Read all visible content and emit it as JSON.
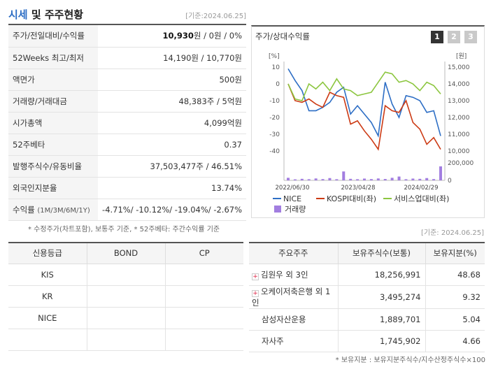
{
  "header": {
    "title_blue": "시세",
    "title_rest": " 및 주주현황",
    "date": "[기준:2024.06.25]"
  },
  "info": [
    {
      "label": "주가/전일대비/수익률",
      "value": "10,930원 / 0원 / 0%"
    },
    {
      "label": "52Weeks 최고/최저",
      "value": "14,190원 / 10,770원"
    },
    {
      "label": "액면가",
      "value": "500원"
    },
    {
      "label": "거래량/거래대금",
      "value": "48,383주 / 5억원"
    },
    {
      "label": "시가총액",
      "value": "4,099억원"
    },
    {
      "label": "52주베타",
      "value": "0.37"
    },
    {
      "label": "발행주식수/유동비율",
      "value": "37,503,477주 / 46.51%"
    },
    {
      "label": "외국인지분율",
      "value": "13.74%"
    },
    {
      "label": "수익률",
      "label_sub": "(1M/3M/6M/1Y)",
      "value": "-4.71%/ -10.12%/ -19.04%/ -2.67%"
    }
  ],
  "footnote1": "* 수정주가(차트포함), 보통주 기준, * 52주베타: 주간수익률 기준",
  "date2": "[기준: 2024.06.25]",
  "chart_panel": {
    "title": "주가/상대수익률",
    "tabs": [
      "1",
      "2",
      "3"
    ],
    "left_unit": "[%]",
    "right_unit": "[원]"
  },
  "chart_data": {
    "type": "line",
    "x_labels": [
      "2022/06/30",
      "2023/04/28",
      "2024/02/29"
    ],
    "y_left_ticks": [
      10,
      0,
      -10,
      -20,
      -30,
      -40
    ],
    "y_right_ticks": [
      "15,000",
      "14,000",
      "13,000",
      "12,000",
      "11,000",
      "10,000"
    ],
    "volume_ticks": [
      "200,000",
      "0"
    ],
    "y_left_range": [
      -40,
      10
    ],
    "series": [
      {
        "name": "NICE",
        "color": "#2d6ec5",
        "values": [
          9,
          2,
          -4,
          -16,
          -16,
          -14,
          -11,
          -5,
          -2,
          -18,
          -13,
          -18,
          -23,
          -31,
          1,
          -12,
          -20,
          -7,
          -8,
          -10,
          -17,
          -16,
          -31
        ]
      },
      {
        "name": "KOSPI대비(좌)",
        "color": "#cc3a14",
        "values": [
          0,
          -10,
          -11,
          -9,
          -12,
          -14,
          -5,
          -7,
          -8,
          -24,
          -22,
          -28,
          -33,
          -39,
          -13,
          -16,
          -17,
          -10,
          -23,
          -27,
          -36,
          -32,
          -39
        ]
      },
      {
        "name": "서비스업대비(좌)",
        "color": "#8cc63f",
        "values": [
          0,
          -9,
          -10,
          0,
          -3,
          1,
          -4,
          3,
          -3,
          -4,
          -7,
          -6,
          -5,
          1,
          7,
          6,
          1,
          2,
          0,
          -4,
          1,
          -1,
          -6
        ]
      }
    ],
    "volume": {
      "name": "거래량",
      "color": "#a27ee0",
      "values": [
        20000,
        8000,
        12000,
        9000,
        15000,
        10000,
        18000,
        9000,
        70000,
        12000,
        9000,
        14000,
        10000,
        15000,
        11000,
        20000,
        30000,
        9000,
        14000,
        12000,
        18000,
        10000,
        110000
      ]
    }
  },
  "credit_table": {
    "headers": [
      "신용등급",
      "BOND",
      "CP"
    ],
    "rows": [
      [
        "KIS",
        "",
        ""
      ],
      [
        "KR",
        "",
        ""
      ],
      [
        "NICE",
        "",
        ""
      ],
      [
        "",
        "",
        ""
      ]
    ]
  },
  "holders_table": {
    "headers": [
      "주요주주",
      "보유주식수(보통)",
      "보유지분(%)"
    ],
    "rows": [
      {
        "name": "김원우 외 3인",
        "expand": true,
        "shares": "18,256,991",
        "pct": "48.68"
      },
      {
        "name": "오케이저축은행 외 1인",
        "expand": true,
        "shares": "3,495,274",
        "pct": "9.32"
      },
      {
        "name": "삼성자산운용",
        "expand": false,
        "shares": "1,889,701",
        "pct": "5.04"
      },
      {
        "name": "자사주",
        "expand": false,
        "shares": "1,745,902",
        "pct": "4.66"
      }
    ]
  },
  "footnote2": "* 보유지분 : 보유지분주식수/지수산정주식수×100"
}
